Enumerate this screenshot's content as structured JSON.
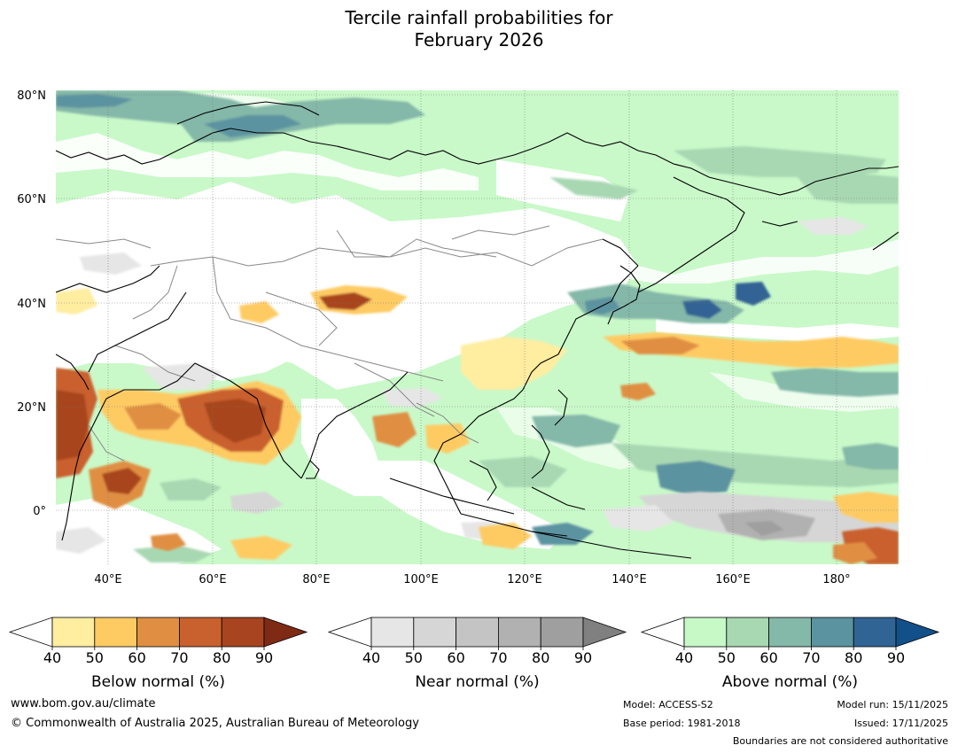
{
  "title": {
    "line1": "Tercile rainfall probabilities for",
    "line2": "February 2026"
  },
  "map": {
    "lat_labels": [
      "80°N",
      "60°N",
      "40°N",
      "20°N",
      "0°"
    ],
    "lon_labels": [
      "40°E",
      "60°E",
      "80°E",
      "100°E",
      "120°E",
      "140°E",
      "160°E",
      "180°"
    ],
    "colors": {
      "ocean_background": "#c9f9c9",
      "land_background": "#ffffff",
      "coastline": "#000000",
      "border": "#888888",
      "gridline": "#777777"
    }
  },
  "legends": [
    {
      "caption": "Below normal (%)",
      "ticks": [
        "40",
        "50",
        "60",
        "70",
        "80",
        "90"
      ],
      "colors": [
        "#ffeda0",
        "#fecb63",
        "#e08f42",
        "#c9612e",
        "#a8441f",
        "#7f2a14"
      ]
    },
    {
      "caption": "Near normal (%)",
      "ticks": [
        "40",
        "50",
        "60",
        "70",
        "80",
        "90"
      ],
      "colors": [
        "#e6e6e6",
        "#d6d6d6",
        "#c4c4c4",
        "#b1b1b1",
        "#9f9f9f",
        "#808080"
      ]
    },
    {
      "caption": "Above normal (%)",
      "ticks": [
        "40",
        "50",
        "60",
        "70",
        "80",
        "90"
      ],
      "colors": [
        "#c7f9c7",
        "#a8d8b2",
        "#84b8a8",
        "#5b93a0",
        "#306494",
        "#12508a"
      ]
    }
  ],
  "footer": {
    "website": "www.bom.gov.au/climate",
    "copyright": "© Commonwealth of Australia 2025, Australian Bureau of Meteorology",
    "model": "Model: ACCESS-S2",
    "base_period": "Base period: 1981-2018",
    "model_run": "Model run: 15/11/2025",
    "issued": "Issued: 17/11/2025",
    "disclaimer": "Boundaries are not considered authoritative"
  }
}
